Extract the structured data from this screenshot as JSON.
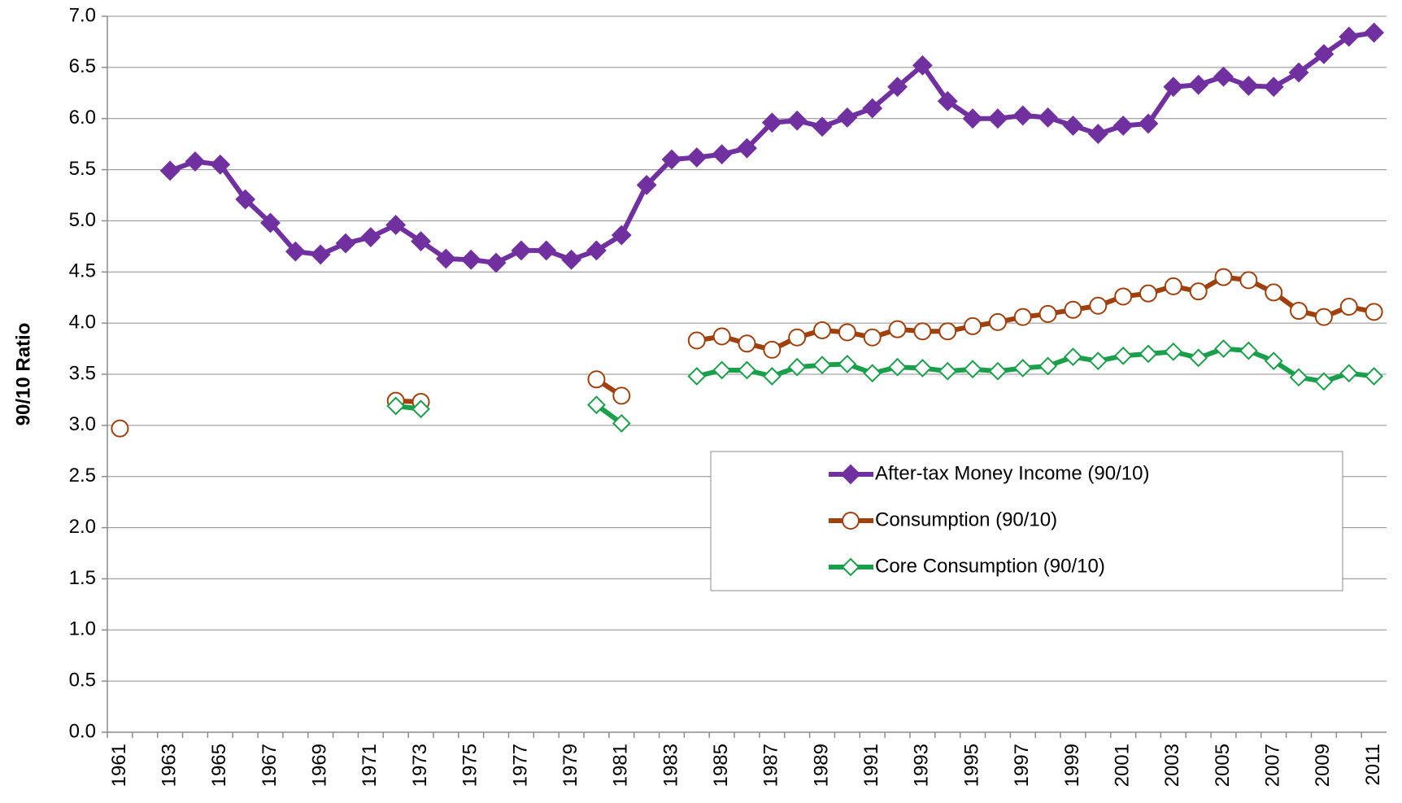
{
  "chart_data": {
    "type": "line",
    "y_label": "90/10 Ratio",
    "categories": [
      "1961",
      null,
      "1963",
      null,
      "1965",
      null,
      "1967",
      null,
      "1969",
      null,
      "1971",
      null,
      "1973",
      null,
      "1975",
      null,
      "1977",
      null,
      "1979",
      null,
      "1981",
      null,
      "1983",
      null,
      "1985",
      null,
      "1987",
      null,
      "1989",
      null,
      "1991",
      null,
      "1993",
      null,
      "1995",
      null,
      "1997",
      null,
      "1999",
      null,
      "2001",
      null,
      "2003",
      null,
      "2005",
      null,
      "2007",
      null,
      "2009",
      null,
      "2011"
    ],
    "series": [
      {
        "name": "After-tax Money Income (90/10)",
        "color": "#7030a0",
        "marker": "diamond-filled",
        "values": [
          null,
          null,
          5.49,
          5.58,
          5.55,
          5.21,
          4.98,
          4.7,
          4.67,
          4.78,
          4.84,
          4.96,
          4.8,
          4.63,
          4.62,
          4.59,
          4.71,
          4.71,
          4.62,
          4.71,
          4.86,
          5.35,
          5.6,
          5.62,
          5.65,
          5.71,
          5.96,
          5.98,
          5.92,
          6.01,
          6.1,
          6.31,
          6.52,
          6.17,
          6.0,
          6.0,
          6.03,
          6.01,
          5.93,
          5.85,
          5.93,
          5.95,
          6.31,
          6.33,
          6.41,
          6.32,
          6.31,
          6.45,
          6.63,
          6.8,
          6.84
        ]
      },
      {
        "name": "Consumption (90/10)",
        "color": "#a0410d",
        "marker": "circle-open",
        "values": [
          2.97,
          null,
          null,
          null,
          null,
          null,
          null,
          null,
          null,
          null,
          null,
          3.24,
          3.23,
          null,
          null,
          null,
          null,
          null,
          null,
          3.45,
          3.29,
          null,
          null,
          3.83,
          3.87,
          3.8,
          3.74,
          3.86,
          3.93,
          3.91,
          3.86,
          3.94,
          3.92,
          3.92,
          3.97,
          4.01,
          4.06,
          4.09,
          4.13,
          4.17,
          4.26,
          4.29,
          4.36,
          4.31,
          4.45,
          4.42,
          4.3,
          4.12,
          4.06,
          4.16,
          4.11
        ]
      },
      {
        "name": "Core Consumption (90/10)",
        "color": "#1aa04a",
        "marker": "diamond-open",
        "values": [
          null,
          null,
          null,
          null,
          null,
          null,
          null,
          null,
          null,
          null,
          null,
          3.19,
          3.16,
          null,
          null,
          null,
          null,
          null,
          null,
          3.2,
          3.02,
          null,
          null,
          3.48,
          3.54,
          3.54,
          3.48,
          3.57,
          3.59,
          3.6,
          3.51,
          3.57,
          3.56,
          3.53,
          3.55,
          3.53,
          3.56,
          3.58,
          3.67,
          3.63,
          3.68,
          3.7,
          3.72,
          3.66,
          3.75,
          3.73,
          3.63,
          3.47,
          3.43,
          3.51,
          3.48
        ]
      }
    ],
    "ylim": [
      0,
      7
    ],
    "yticks": [
      {
        "value": 0,
        "label": "0.0"
      },
      {
        "value": 0.5,
        "label": "0.5"
      },
      {
        "value": 1,
        "label": "1.0"
      },
      {
        "value": 1.5,
        "label": "1.5"
      },
      {
        "value": 2,
        "label": "2.0"
      },
      {
        "value": 2.5,
        "label": "2.5"
      },
      {
        "value": 3,
        "label": "3.0"
      },
      {
        "value": 3.5,
        "label": "3.5"
      },
      {
        "value": 4,
        "label": "4.0"
      },
      {
        "value": 4.5,
        "label": "4.5"
      },
      {
        "value": 5,
        "label": "5.0"
      },
      {
        "value": 5.5,
        "label": "5.5"
      },
      {
        "value": 6,
        "label": "6.0"
      },
      {
        "value": 6.5,
        "label": "6.5"
      },
      {
        "value": 7,
        "label": "7.0"
      }
    ],
    "grid": true,
    "legend": "lower-right"
  }
}
